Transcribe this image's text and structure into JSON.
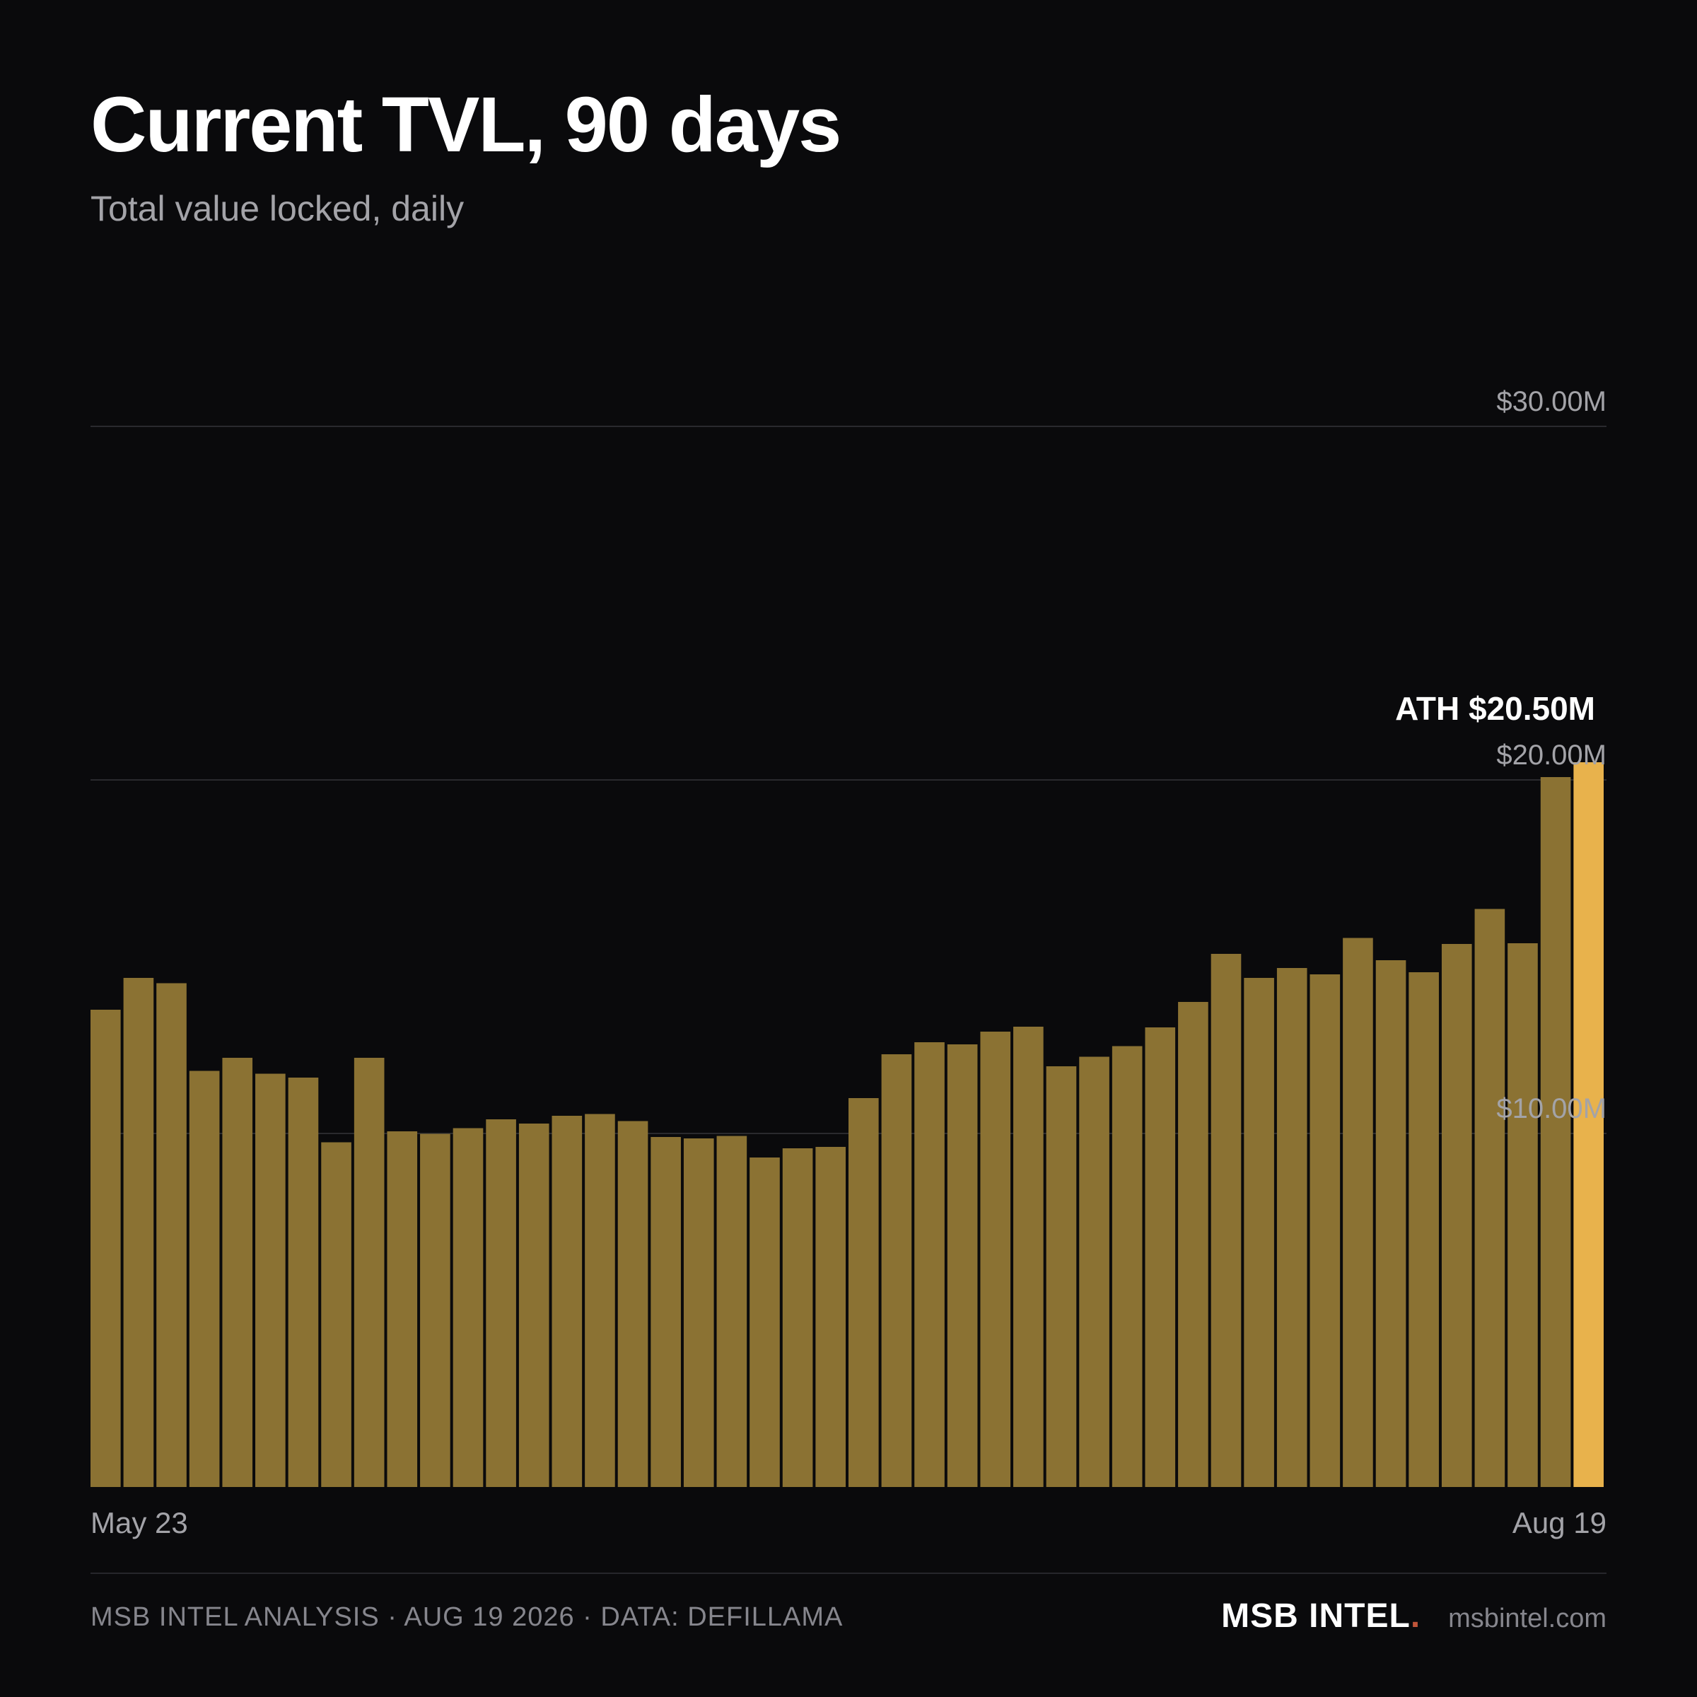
{
  "header": {
    "title": "Current TVL, 90 days",
    "subtitle": "Total value locked, daily"
  },
  "footer": {
    "credit": "MSB INTEL ANALYSIS · AUG 19 2026 · DATA: DEFILLAMA",
    "brand": "MSB INTEL",
    "brand_dot": ".",
    "site": "msbintel.com"
  },
  "colors": {
    "background": "#0a0a0c",
    "bar": "#8b7233",
    "bar_highlight": "#e8b24c",
    "grid": "#2a2a2e",
    "brand_dot": "#c0553a"
  },
  "chart_data": {
    "type": "bar",
    "title": "Current TVL, 90 days",
    "subtitle": "Total value locked, daily",
    "xlabel": "",
    "ylabel": "",
    "ylim": [
      0,
      30
    ],
    "y_unit": "$M",
    "y_ticks": [
      10,
      20,
      30
    ],
    "y_tick_labels": [
      "$10.00M",
      "$20.00M",
      "$30.00M"
    ],
    "grid": true,
    "x_range_labels": [
      "May 23",
      "Aug 19"
    ],
    "values": [
      13.5,
      14.4,
      14.25,
      11.77,
      12.14,
      11.69,
      11.58,
      9.75,
      12.14,
      10.06,
      9.99,
      10.15,
      10.4,
      10.28,
      10.5,
      10.55,
      10.35,
      9.9,
      9.86,
      9.93,
      9.32,
      9.58,
      9.62,
      11.0,
      12.24,
      12.58,
      12.52,
      12.88,
      13.02,
      11.9,
      12.17,
      12.47,
      13.0,
      13.72,
      15.08,
      14.4,
      14.68,
      14.5,
      15.53,
      14.9,
      14.56,
      15.36,
      16.35,
      15.38,
      20.08,
      20.5
    ],
    "highlight_index": 45,
    "annotation": "ATH $20.50M"
  }
}
